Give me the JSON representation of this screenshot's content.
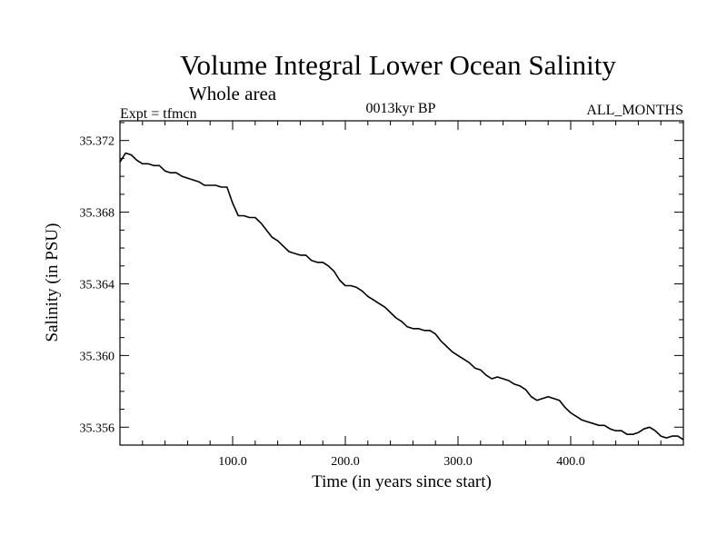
{
  "chart_data": {
    "type": "line",
    "title": "Volume Integral Lower Ocean Salinity",
    "subtitle": "Whole area",
    "annotations": {
      "left": "Expt = tfmcn",
      "center": "0013kyr BP",
      "right": "ALL_MONTHS"
    },
    "xlabel": "Time (in years since start)",
    "ylabel": "Salinity (in PSU)",
    "xlim": [
      0,
      500
    ],
    "ylim": [
      35.355,
      35.3731
    ],
    "x_ticks": [
      100,
      200,
      300,
      400
    ],
    "x_tick_labels": [
      "100.0",
      "200.0",
      "300.0",
      "400.0"
    ],
    "y_ticks": [
      35.356,
      35.36,
      35.364,
      35.368,
      35.372
    ],
    "y_tick_labels": [
      "35.356",
      "35.360",
      "35.364",
      "35.368",
      "35.372"
    ],
    "grid": false,
    "series": [
      {
        "color": "#000000",
        "x": [
          0,
          5,
          10,
          15,
          20,
          25,
          30,
          35,
          40,
          45,
          50,
          55,
          60,
          65,
          70,
          75,
          80,
          85,
          90,
          95,
          100,
          105,
          110,
          115,
          120,
          125,
          130,
          135,
          140,
          145,
          150,
          155,
          160,
          165,
          170,
          175,
          180,
          185,
          190,
          195,
          200,
          205,
          210,
          215,
          220,
          225,
          230,
          235,
          240,
          245,
          250,
          255,
          260,
          265,
          270,
          275,
          280,
          285,
          290,
          295,
          300,
          305,
          310,
          315,
          320,
          325,
          330,
          335,
          340,
          345,
          350,
          355,
          360,
          365,
          370,
          375,
          380,
          385,
          390,
          395,
          400,
          405,
          410,
          415,
          420,
          425,
          430,
          435,
          440,
          445,
          450,
          455,
          460,
          465,
          470,
          475,
          480,
          485,
          490,
          495,
          500
        ],
        "y": [
          35.3708,
          35.3713,
          35.3712,
          35.3709,
          35.3707,
          35.3707,
          35.3706,
          35.3706,
          35.3703,
          35.3702,
          35.3702,
          35.37,
          35.3699,
          35.3698,
          35.3697,
          35.3695,
          35.3695,
          35.3695,
          35.3694,
          35.3694,
          35.3685,
          35.3678,
          35.3678,
          35.3677,
          35.3677,
          35.3674,
          35.367,
          35.3666,
          35.3664,
          35.3661,
          35.3658,
          35.3657,
          35.3656,
          35.3656,
          35.3653,
          35.3652,
          35.3652,
          35.365,
          35.3647,
          35.3642,
          35.3639,
          35.3639,
          35.3638,
          35.3636,
          35.3633,
          35.3631,
          35.3629,
          35.3627,
          35.3624,
          35.3621,
          35.3619,
          35.3616,
          35.3615,
          35.3615,
          35.3614,
          35.3614,
          35.3612,
          35.3608,
          35.3605,
          35.3602,
          35.36,
          35.3598,
          35.3596,
          35.3593,
          35.3592,
          35.3589,
          35.3587,
          35.3588,
          35.3587,
          35.3586,
          35.3584,
          35.3583,
          35.3581,
          35.3577,
          35.3575,
          35.3576,
          35.3577,
          35.3576,
          35.3575,
          35.3571,
          35.3568,
          35.3566,
          35.3564,
          35.3563,
          35.3562,
          35.3561,
          35.3561,
          35.3559,
          35.3558,
          35.3558,
          35.3556,
          35.3556,
          35.3557,
          35.3559,
          35.356,
          35.3558,
          35.3555,
          35.3554,
          35.3555,
          35.3555,
          35.3553
        ]
      }
    ]
  }
}
